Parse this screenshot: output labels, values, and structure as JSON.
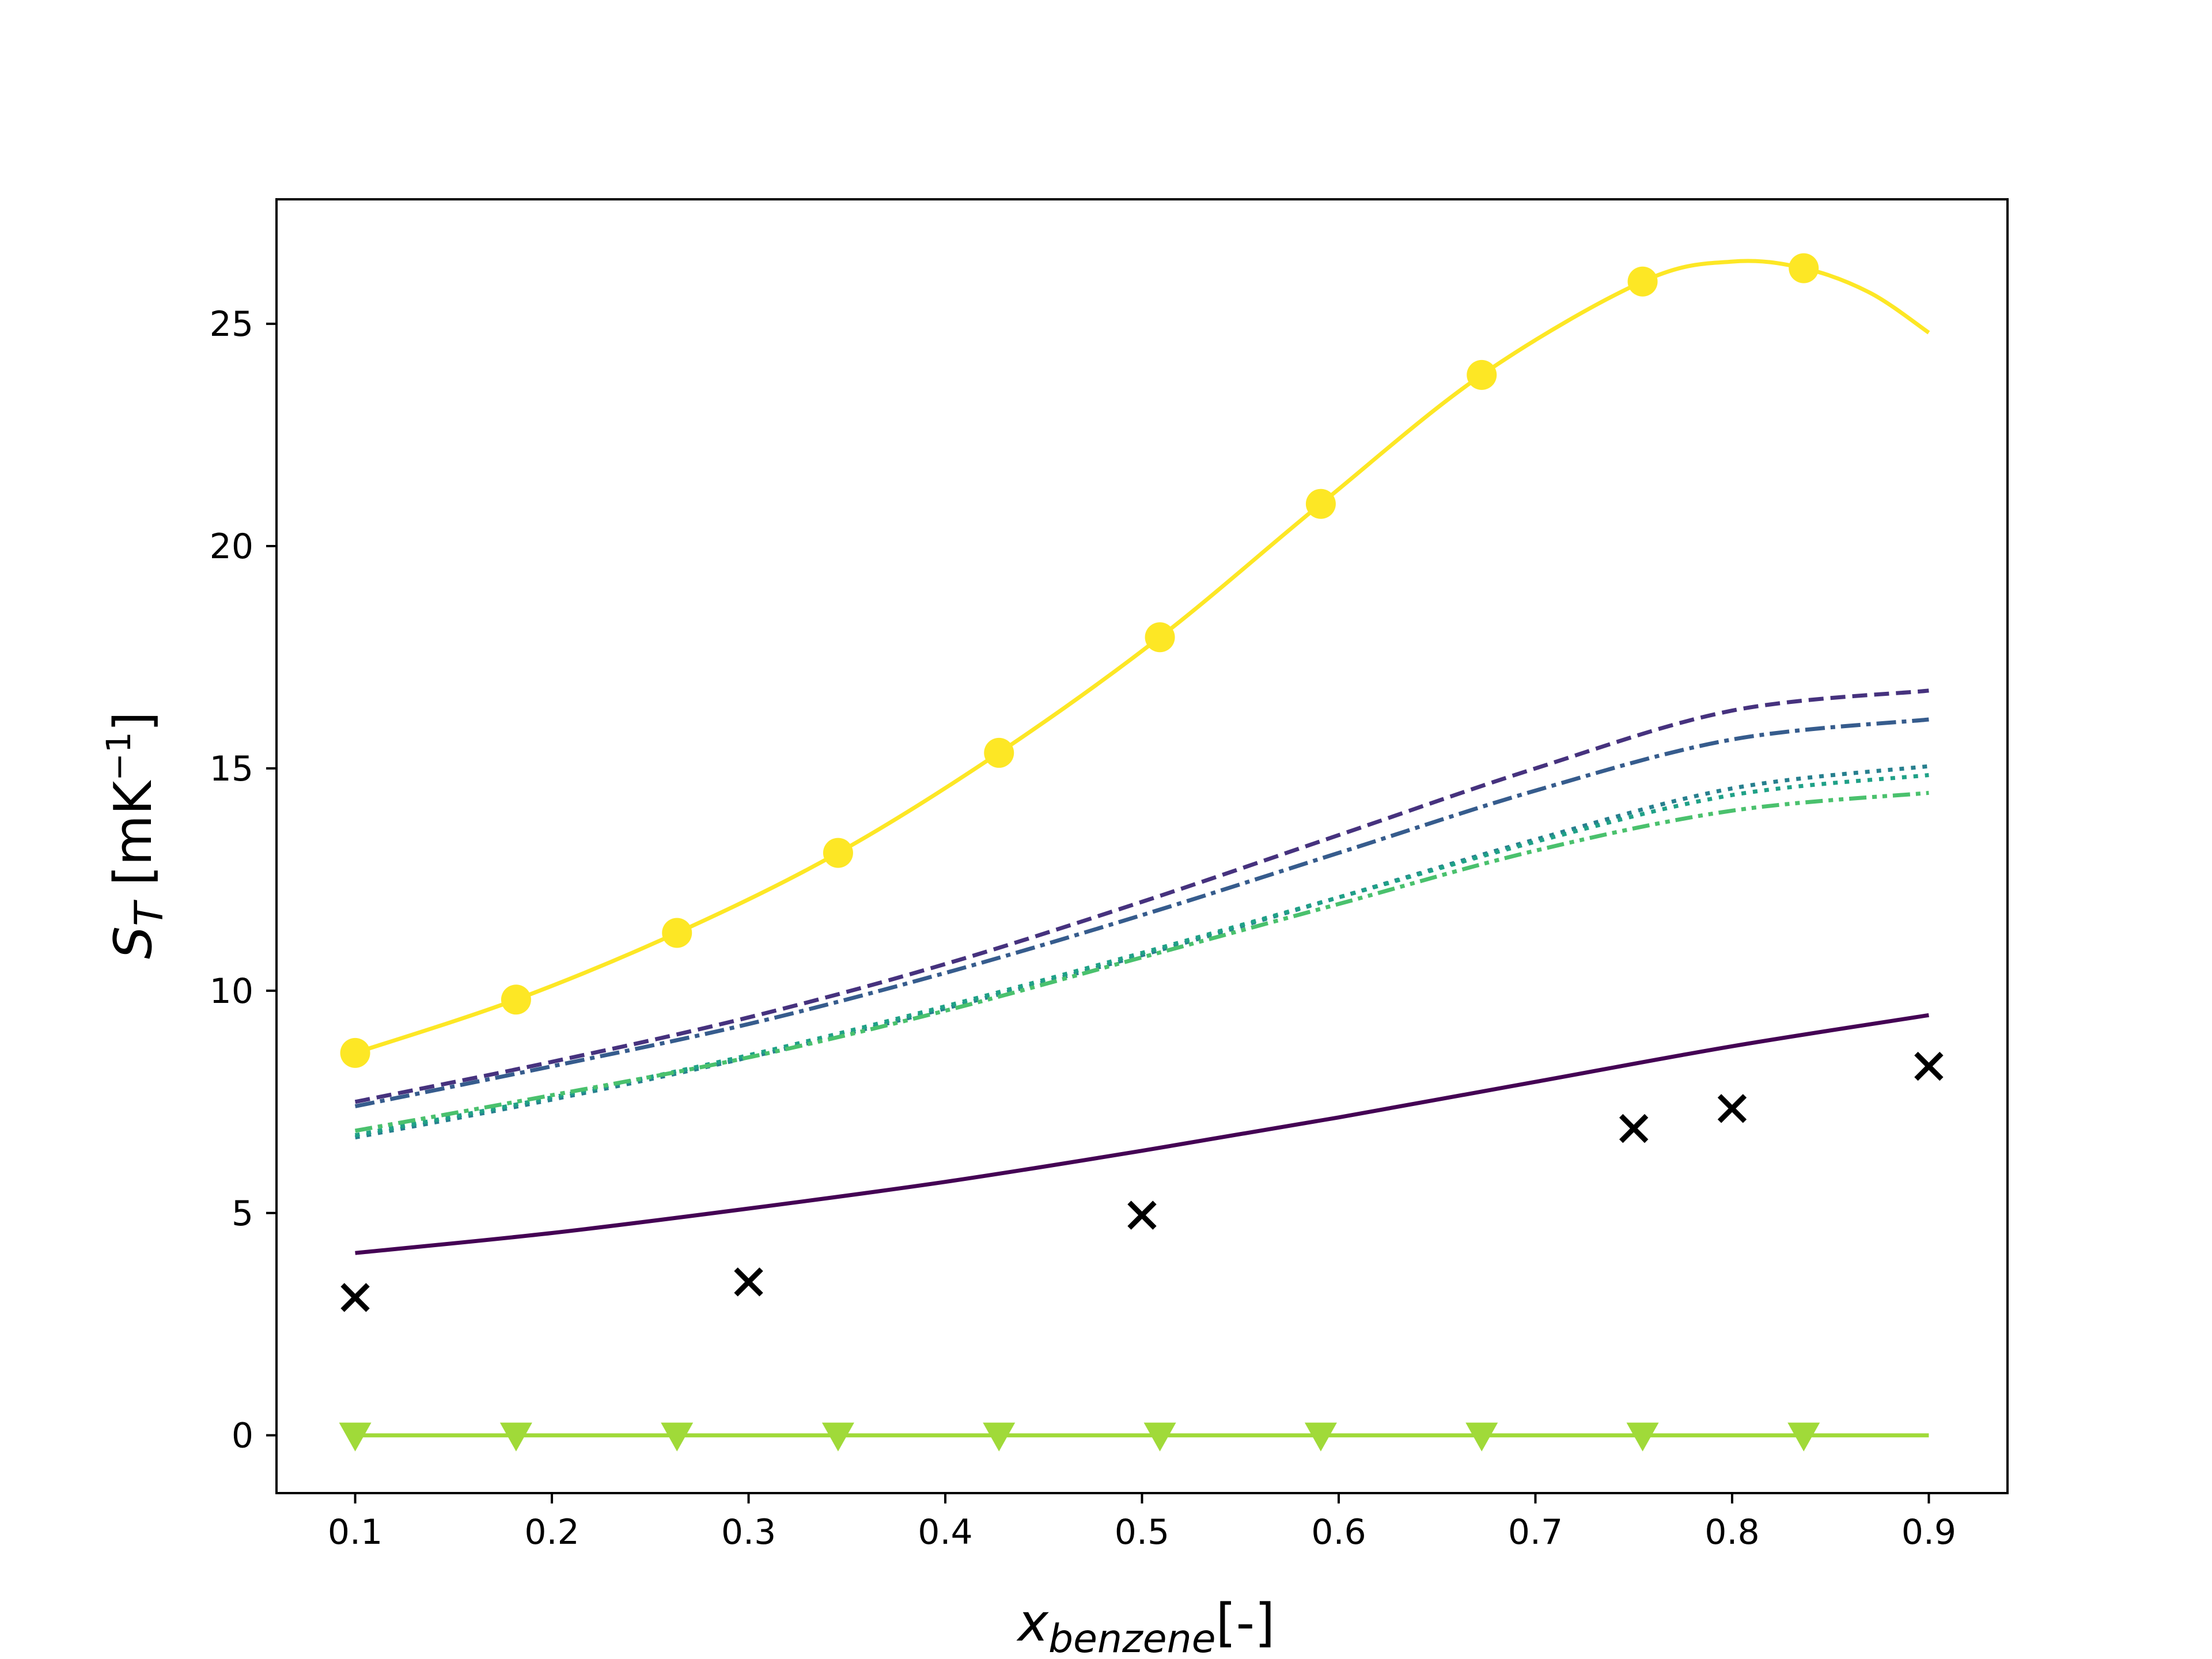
{
  "chart_data": {
    "type": "line",
    "xlabel": {
      "main": "x",
      "sub": "benzene",
      "suffix": "[-]"
    },
    "ylabel": {
      "main": "S",
      "sub": "T",
      "suffix": " [mK",
      "exp": "−1",
      "close": "]"
    },
    "xlim": [
      0.06,
      0.94
    ],
    "ylim": [
      -1.3,
      27.8
    ],
    "x_ticks": [
      0.1,
      0.2,
      0.3,
      0.4,
      0.5,
      0.6,
      0.7,
      0.8,
      0.9
    ],
    "x_tick_labels": [
      "0.1",
      "0.2",
      "0.3",
      "0.4",
      "0.5",
      "0.6",
      "0.7",
      "0.8",
      "0.9"
    ],
    "y_ticks": [
      0,
      5,
      10,
      15,
      20,
      25
    ],
    "y_tick_labels": [
      "0",
      "5",
      "10",
      "15",
      "20",
      "25"
    ],
    "grid": false,
    "legend": "none",
    "series": [
      {
        "color": "#440154",
        "style": "solid",
        "marker": "none",
        "x": [
          0.1,
          0.2,
          0.3,
          0.4,
          0.5,
          0.6,
          0.7,
          0.8,
          0.9
        ],
        "y": [
          4.1,
          4.55,
          5.1,
          5.7,
          6.4,
          7.15,
          7.95,
          8.75,
          9.45
        ]
      },
      {
        "color": "#46327e",
        "style": "dashed",
        "marker": "none",
        "x": [
          0.1,
          0.2,
          0.3,
          0.4,
          0.5,
          0.6,
          0.7,
          0.8,
          0.9
        ],
        "y": [
          7.5,
          8.4,
          9.4,
          10.6,
          12.0,
          13.5,
          15.0,
          16.3,
          16.75
        ]
      },
      {
        "color": "#365c8d",
        "style": "dashdot",
        "marker": "none",
        "x": [
          0.1,
          0.2,
          0.3,
          0.4,
          0.5,
          0.6,
          0.7,
          0.8,
          0.9
        ],
        "y": [
          7.4,
          8.3,
          9.25,
          10.4,
          11.7,
          13.1,
          14.5,
          15.65,
          16.1
        ]
      },
      {
        "color": "#277f8e",
        "style": "dotted",
        "marker": "none",
        "x": [
          0.1,
          0.2,
          0.3,
          0.4,
          0.5,
          0.6,
          0.7,
          0.8,
          0.9
        ],
        "y": [
          6.7,
          7.55,
          8.5,
          9.6,
          10.8,
          12.1,
          13.4,
          14.55,
          15.05
        ]
      },
      {
        "color": "#1fa187",
        "style": "dotted",
        "marker": "none",
        "x": [
          0.1,
          0.2,
          0.3,
          0.4,
          0.5,
          0.6,
          0.7,
          0.8,
          0.9
        ],
        "y": [
          6.75,
          7.6,
          8.55,
          9.65,
          10.85,
          12.1,
          13.35,
          14.4,
          14.85
        ]
      },
      {
        "color": "#4ac16d",
        "style": "dashdotdot",
        "marker": "none",
        "x": [
          0.1,
          0.2,
          0.3,
          0.4,
          0.5,
          0.6,
          0.7,
          0.8,
          0.9
        ],
        "y": [
          6.85,
          7.65,
          8.5,
          9.55,
          10.75,
          11.95,
          13.15,
          14.05,
          14.45
        ]
      },
      {
        "color": "#a0da39",
        "style": "solid",
        "marker": "triangle-down",
        "x": [
          0.1,
          0.1818,
          0.2636,
          0.3455,
          0.4273,
          0.5091,
          0.5909,
          0.6727,
          0.7545,
          0.8364,
          0.9
        ],
        "y": [
          0,
          0,
          0,
          0,
          0,
          0,
          0,
          0,
          0,
          0,
          0
        ],
        "marker_x": [
          0.1,
          0.1818,
          0.2636,
          0.3455,
          0.4273,
          0.5091,
          0.5909,
          0.6727,
          0.7545,
          0.8364
        ]
      },
      {
        "color": "#fde725",
        "style": "solid",
        "marker": "circle",
        "x": [
          0.1,
          0.1818,
          0.2636,
          0.3455,
          0.4273,
          0.5091,
          0.5909,
          0.6727,
          0.7545,
          0.8,
          0.8364,
          0.87,
          0.9
        ],
        "y": [
          8.6,
          9.8,
          11.3,
          13.1,
          15.35,
          17.95,
          20.95,
          23.85,
          25.95,
          26.4,
          26.25,
          25.7,
          24.8
        ],
        "marker_points": [
          [
            0.1,
            8.6
          ],
          [
            0.1818,
            9.8
          ],
          [
            0.2636,
            11.3
          ],
          [
            0.3455,
            13.1
          ],
          [
            0.4273,
            15.35
          ],
          [
            0.5091,
            17.95
          ],
          [
            0.5909,
            20.95
          ],
          [
            0.6727,
            23.85
          ],
          [
            0.7545,
            25.95
          ],
          [
            0.8364,
            26.25
          ]
        ]
      },
      {
        "color": "#000000",
        "style": "none",
        "marker": "x",
        "x": [
          0.1,
          0.3,
          0.5,
          0.75,
          0.8,
          0.9
        ],
        "y": [
          3.1,
          3.45,
          4.95,
          6.9,
          7.35,
          8.3
        ]
      }
    ]
  }
}
